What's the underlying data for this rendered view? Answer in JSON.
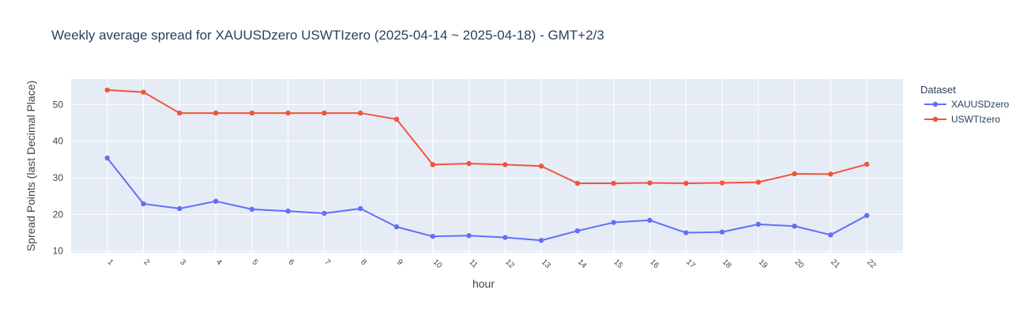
{
  "chart_data": {
    "type": "line",
    "title": "Weekly average spread for  XAUUSDzero USWTIzero (2025-04-14 ~ 2025-04-18) - GMT+2/3",
    "xlabel": "hour",
    "ylabel": "Spread Points (last Decimal Place)",
    "x": [
      1,
      2,
      3,
      4,
      5,
      6,
      7,
      8,
      9,
      10,
      11,
      12,
      13,
      14,
      15,
      16,
      17,
      18,
      19,
      20,
      21,
      22
    ],
    "xlim": [
      0,
      23
    ],
    "ylim": [
      9.5,
      57
    ],
    "yticks": [
      10,
      20,
      30,
      40,
      50
    ],
    "grid": true,
    "legend": {
      "title": "Dataset",
      "position": "top-right"
    },
    "series": [
      {
        "name": "XAUUSDzero",
        "color": "#636efa",
        "values": [
          35.4,
          22.9,
          21.6,
          23.6,
          21.4,
          20.9,
          20.3,
          21.6,
          16.6,
          14.0,
          14.2,
          13.7,
          12.9,
          15.5,
          17.8,
          18.4,
          15.0,
          15.2,
          17.3,
          16.8,
          14.4,
          19.7
        ]
      },
      {
        "name": "USWTIzero",
        "color": "#ef553b",
        "values": [
          54.0,
          53.4,
          47.7,
          47.7,
          47.7,
          47.7,
          47.7,
          47.7,
          46.0,
          33.6,
          33.9,
          33.6,
          33.2,
          28.5,
          28.5,
          28.6,
          28.5,
          28.6,
          28.8,
          31.1,
          31.0,
          33.7
        ]
      }
    ]
  }
}
